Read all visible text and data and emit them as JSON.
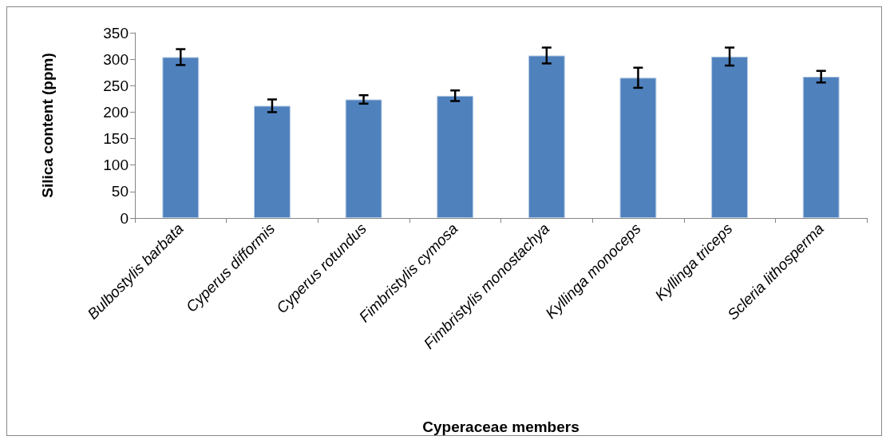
{
  "chart_data": {
    "type": "bar",
    "xlabel": "Cyperaceae members",
    "ylabel": "Silica content (ppm)",
    "categories": [
      "Bulbostylis barbata",
      "Cyperus difformis",
      "Cyperus rotundus",
      "Fimbristylis cymosa",
      "Fimbristylis monostachya",
      "Kyllinga monoceps",
      "Kyllinga triceps",
      "Scleria lithosperma"
    ],
    "values": [
      304,
      212,
      224,
      231,
      307,
      265,
      305,
      267
    ],
    "errors": [
      15,
      12,
      8,
      10,
      15,
      19,
      17,
      11
    ],
    "color": "#4f81bd",
    "ylim": [
      0,
      350
    ],
    "yticks": [
      0,
      50,
      100,
      150,
      200,
      250,
      300,
      350
    ],
    "grid": false
  }
}
